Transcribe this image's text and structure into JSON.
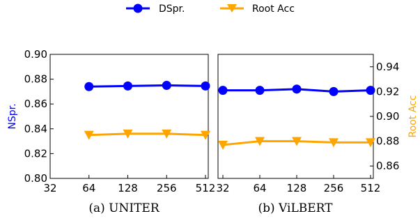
{
  "legend": {
    "entries": [
      {
        "label": "DSpr.",
        "color": "#0000ff",
        "marker": "circle"
      },
      {
        "label": "Root Acc",
        "color": "#ffa500",
        "marker": "triangle-down"
      }
    ]
  },
  "colors": {
    "dspr": "#0000ff",
    "root_acc": "#ffa500"
  },
  "chart_data": [
    {
      "type": "line",
      "caption": "(a) UNITER",
      "x": [
        64,
        128,
        256,
        512
      ],
      "xticks": [
        "32",
        "64",
        "128",
        "256",
        "512"
      ],
      "xscale": "log2",
      "xlim": [
        32,
        512
      ],
      "left_axis": {
        "label": "NSpr.",
        "color": "#0000ff",
        "ylim": [
          0.8,
          0.9
        ],
        "ticks": [
          "0.80",
          "0.82",
          "0.84",
          "0.86",
          "0.88",
          "0.90"
        ],
        "tick_values": [
          0.8,
          0.82,
          0.84,
          0.86,
          0.88,
          0.9
        ]
      },
      "series": [
        {
          "name": "DSpr.",
          "axis": "left",
          "values": [
            0.874,
            0.8745,
            0.875,
            0.8745
          ]
        },
        {
          "name": "Root Acc",
          "axis": "left",
          "values": [
            0.835,
            0.836,
            0.836,
            0.835
          ]
        }
      ]
    },
    {
      "type": "line",
      "caption": "(b) ViLBERT",
      "x": [
        32,
        64,
        128,
        256,
        512
      ],
      "xticks": [
        "32",
        "64",
        "128",
        "256",
        "512"
      ],
      "xscale": "log2",
      "xlim": [
        32,
        512
      ],
      "right_axis": {
        "label": "Root Acc",
        "color": "#ffa500",
        "ylim": [
          0.85,
          0.95
        ],
        "ticks": [
          "0.86",
          "0.88",
          "0.90",
          "0.92",
          "0.94"
        ],
        "tick_values": [
          0.86,
          0.88,
          0.9,
          0.92,
          0.94
        ]
      },
      "series": [
        {
          "name": "DSpr.",
          "axis": "right",
          "values": [
            0.921,
            0.921,
            0.922,
            0.92,
            0.921
          ]
        },
        {
          "name": "Root Acc",
          "axis": "right",
          "values": [
            0.877,
            0.88,
            0.88,
            0.879,
            0.879
          ]
        }
      ]
    }
  ]
}
